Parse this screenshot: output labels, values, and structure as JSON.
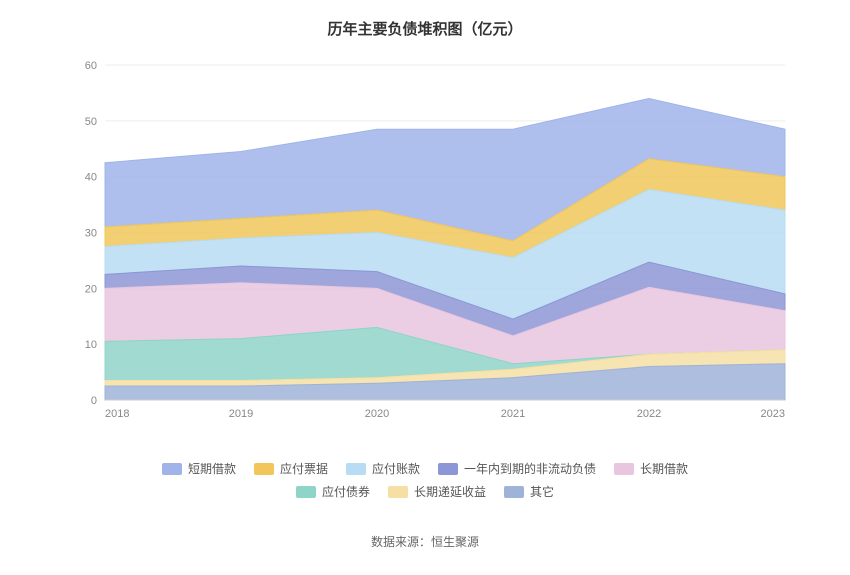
{
  "title": "历年主要负债堆积图（亿元）",
  "source": "数据来源：恒生聚源",
  "chart": {
    "type": "stacked-area",
    "x_categories": [
      "2018",
      "2019",
      "2020",
      "2021",
      "2022",
      "2023"
    ],
    "y_min": 0,
    "y_max": 60,
    "y_tick_step": 10,
    "y_ticks": [
      0,
      10,
      20,
      30,
      40,
      50,
      60
    ],
    "background_color": "#ffffff",
    "grid_color": "#eeeeee",
    "axis_label_color": "#888888",
    "axis_label_fontsize": 11,
    "series": [
      {
        "name": "其它",
        "color": "#9fb3d9",
        "values": [
          2.5,
          2.5,
          3.0,
          4.0,
          6.0,
          6.5
        ]
      },
      {
        "name": "长期递延收益",
        "color": "#f5dfa4",
        "values": [
          1.0,
          1.0,
          1.0,
          1.5,
          2.2,
          2.5
        ]
      },
      {
        "name": "应付债券",
        "color": "#8fd4c8",
        "values": [
          7.0,
          7.5,
          9.0,
          1.0,
          0.0,
          0.0
        ]
      },
      {
        "name": "长期借款",
        "color": "#e9c6df",
        "values": [
          9.5,
          10.0,
          7.0,
          5.0,
          12.0,
          7.0
        ]
      },
      {
        "name": "一年内到期的非流动负债",
        "color": "#8d96d6",
        "values": [
          2.5,
          3.0,
          3.0,
          3.0,
          4.5,
          3.0
        ]
      },
      {
        "name": "应付账款",
        "color": "#b7dcf3",
        "values": [
          5.0,
          5.0,
          7.0,
          11.0,
          13.0,
          15.0
        ]
      },
      {
        "name": "应付票据",
        "color": "#f1c75b",
        "values": [
          3.5,
          3.5,
          4.0,
          3.0,
          5.5,
          6.0
        ]
      },
      {
        "name": "短期借款",
        "color": "#a0b4ea",
        "values": [
          11.5,
          12.0,
          14.5,
          20.0,
          10.8,
          8.5
        ]
      }
    ]
  },
  "legend_order": [
    "短期借款",
    "应付票据",
    "应付账款",
    "一年内到期的非流动负债",
    "长期借款",
    "应付债券",
    "长期递延收益",
    "其它"
  ]
}
